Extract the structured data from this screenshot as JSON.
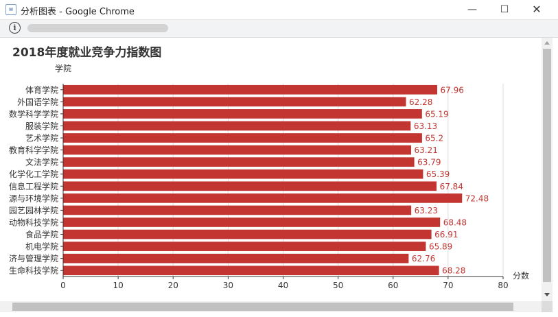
{
  "window": {
    "title": "分析图表 - Google Chrome"
  },
  "controls": {
    "minimize": "—",
    "maximize": "☐",
    "close": "✕"
  },
  "colors": {
    "bar": "#c23531",
    "label": "#c23531",
    "axis": "#333333",
    "grid": "#dddddd"
  },
  "chart_data": {
    "type": "bar",
    "orientation": "horizontal",
    "title": "2018年度就业竞争力指数图",
    "ylabel": "学院",
    "xlabel": "分数",
    "xlim": [
      0,
      80
    ],
    "xticks": [
      0,
      10,
      20,
      30,
      40,
      50,
      60,
      70,
      80
    ],
    "grid": true,
    "categories": [
      "体育学院",
      "外国语学院",
      "数学科学学院",
      "服装学院",
      "艺术学院",
      "教育科学学院",
      "文法学院",
      "化学化工学院",
      "信息工程学院",
      "源与环境学院",
      "园艺园林学院",
      "动物科技学院",
      "食品学院",
      "机电学院",
      "济与管理学院",
      "生命科技学院"
    ],
    "values": [
      67.96,
      62.28,
      65.19,
      63.13,
      65.2,
      63.21,
      63.79,
      65.39,
      67.84,
      72.48,
      63.23,
      68.48,
      66.91,
      65.89,
      62.76,
      68.28
    ],
    "value_labels": [
      "67.96",
      "62.28",
      "65.19",
      "63.13",
      "65.2",
      "63.21",
      "63.79",
      "65.39",
      "67.84",
      "72.48",
      "63.23",
      "68.48",
      "66.91",
      "65.89",
      "62.76",
      "68.28"
    ]
  }
}
